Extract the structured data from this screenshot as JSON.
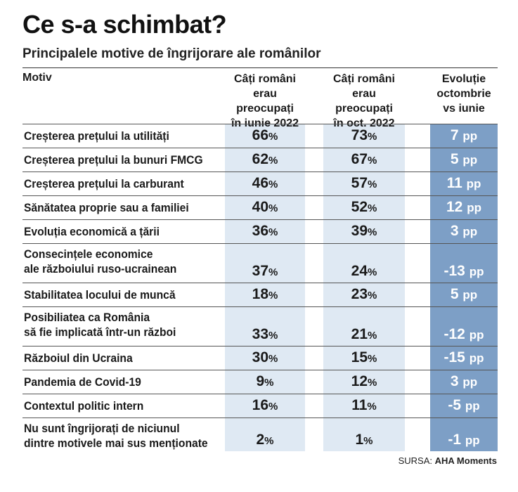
{
  "title": "Ce s-a schimbat?",
  "subtitle": "Principalele motive de îngrijorare ale românilor",
  "headers": {
    "motiv": "Motiv",
    "june": [
      "Câți români",
      "erau preocupați",
      "în iunie 2022"
    ],
    "october": [
      "Câți români",
      "erau preocupați",
      "în oct. 2022"
    ],
    "evolution": [
      "Evoluție",
      "octombrie",
      "vs iunie"
    ]
  },
  "rows": [
    {
      "label": [
        "Creșterea prețului la utilități"
      ],
      "june": "66",
      "october": "73",
      "diff": "7"
    },
    {
      "label": [
        "Creșterea prețului la bunuri FMCG"
      ],
      "june": "62",
      "october": "67",
      "diff": "5"
    },
    {
      "label": [
        "Creșterea prețului la carburant"
      ],
      "june": "46",
      "october": "57",
      "diff": "11"
    },
    {
      "label": [
        "Sănătatea proprie sau a familiei"
      ],
      "june": "40",
      "october": "52",
      "diff": "12"
    },
    {
      "label": [
        "Evoluția economică a țării"
      ],
      "june": "36",
      "october": "39",
      "diff": "3"
    },
    {
      "label": [
        "Consecințele economice",
        "ale războiului ruso-ucrainean"
      ],
      "june": "37",
      "october": "24",
      "diff": "-13"
    },
    {
      "label": [
        "Stabilitatea locului de muncă"
      ],
      "june": "18",
      "october": "23",
      "diff": "5"
    },
    {
      "label": [
        "Posibiliatea ca România",
        "să fie implicată într-un război"
      ],
      "june": "33",
      "october": "21",
      "diff": "-12"
    },
    {
      "label": [
        "Războiul din Ucraina"
      ],
      "june": "30",
      "october": "15",
      "diff": "-15"
    },
    {
      "label": [
        "Pandemia de Covid-19"
      ],
      "june": "9",
      "october": "12",
      "diff": "3"
    },
    {
      "label": [
        "Contextul politic intern"
      ],
      "june": "16",
      "october": "11",
      "diff": "-5"
    },
    {
      "label": [
        "Nu sunt îngrijorați de niciunul",
        "dintre motivele mai sus menționate"
      ],
      "june": "2",
      "october": "1",
      "diff": "-1"
    }
  ],
  "units": {
    "percent": "%",
    "pp": "pp"
  },
  "source": {
    "prefix": "SURSA:",
    "name": "AHA Moments"
  },
  "colors": {
    "light_column": "#dfe9f3",
    "dark_column": "#7d9fc6"
  }
}
